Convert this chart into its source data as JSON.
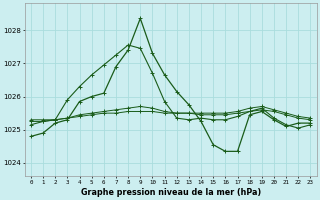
{
  "title": "Graphe pression niveau de la mer (hPa)",
  "bg_color": "#cceef0",
  "grid_color": "#aadddd",
  "line_color": "#1a5c1a",
  "x_ticks": [
    0,
    1,
    2,
    3,
    4,
    5,
    6,
    7,
    8,
    9,
    10,
    11,
    12,
    13,
    14,
    15,
    16,
    17,
    18,
    19,
    20,
    21,
    22,
    23
  ],
  "ylim": [
    1023.6,
    1028.8
  ],
  "yticks": [
    1024,
    1025,
    1026,
    1027,
    1028
  ],
  "series1": [
    1024.8,
    1024.9,
    1025.2,
    1025.3,
    1025.85,
    1026.0,
    1026.1,
    1026.9,
    1027.4,
    1028.35,
    1027.3,
    1026.65,
    1026.15,
    1025.75,
    1025.25,
    1024.55,
    1024.35,
    1024.35,
    1025.45,
    1025.55,
    1025.3,
    1025.1,
    1025.2,
    1025.2
  ],
  "series2": [
    1025.15,
    1025.25,
    1025.3,
    1025.9,
    1026.3,
    1026.65,
    1026.95,
    1027.25,
    1027.55,
    1027.45,
    1026.7,
    1025.85,
    1025.35,
    1025.3,
    1025.35,
    1025.3,
    1025.3,
    1025.4,
    1025.55,
    1025.65,
    1025.35,
    1025.15,
    1025.05,
    1025.15
  ],
  "series3": [
    1025.3,
    1025.3,
    1025.3,
    1025.35,
    1025.4,
    1025.45,
    1025.5,
    1025.5,
    1025.55,
    1025.55,
    1025.55,
    1025.5,
    1025.5,
    1025.5,
    1025.45,
    1025.45,
    1025.45,
    1025.5,
    1025.55,
    1025.6,
    1025.55,
    1025.45,
    1025.35,
    1025.3
  ],
  "series4": [
    1025.25,
    1025.25,
    1025.3,
    1025.35,
    1025.45,
    1025.5,
    1025.55,
    1025.6,
    1025.65,
    1025.7,
    1025.65,
    1025.55,
    1025.5,
    1025.5,
    1025.5,
    1025.5,
    1025.5,
    1025.55,
    1025.65,
    1025.7,
    1025.6,
    1025.5,
    1025.4,
    1025.35
  ]
}
